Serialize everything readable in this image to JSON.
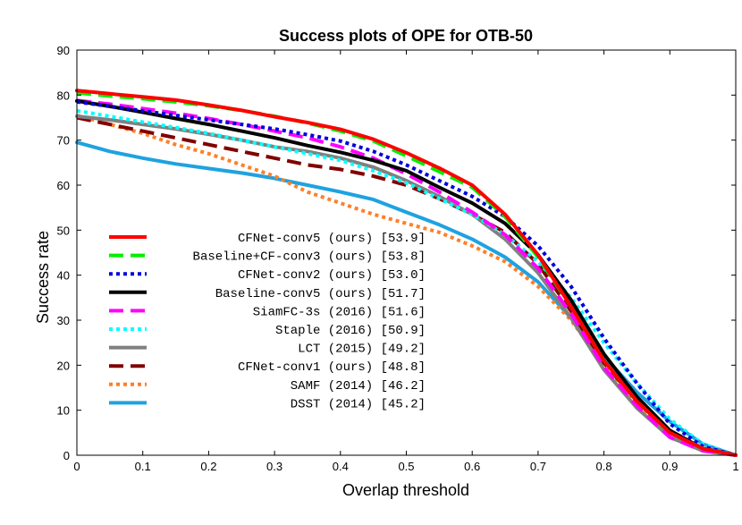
{
  "chart_data": {
    "type": "line",
    "title": "Success plots of OPE for OTB-50",
    "xlabel": "Overlap threshold",
    "ylabel": "Success rate",
    "xlim": [
      0,
      1
    ],
    "ylim": [
      0,
      90
    ],
    "xticks": [
      "0",
      "0.1",
      "0.2",
      "0.3",
      "0.4",
      "0.5",
      "0.6",
      "0.7",
      "0.8",
      "0.9",
      "1"
    ],
    "yticks": [
      "0",
      "10",
      "20",
      "30",
      "40",
      "50",
      "60",
      "70",
      "80",
      "90"
    ],
    "grid": false,
    "legend_position": "lower-left",
    "x": [
      0,
      0.05,
      0.1,
      0.15,
      0.2,
      0.25,
      0.3,
      0.35,
      0.4,
      0.45,
      0.5,
      0.55,
      0.6,
      0.65,
      0.7,
      0.75,
      0.8,
      0.85,
      0.9,
      0.95,
      1.0
    ],
    "series": [
      {
        "name": "CFNet-conv5 (ours) [53.9]",
        "color": "#ff0000",
        "dash": "solid",
        "values": [
          81,
          80.3,
          79.6,
          78.9,
          77.8,
          76.6,
          75.2,
          73.9,
          72.4,
          70.2,
          67.2,
          63.8,
          60,
          53.5,
          44.5,
          33,
          21,
          12,
          5,
          1.5,
          0
        ]
      },
      {
        "name": "Baseline+CF-conv3 (ours) [53.8]",
        "color": "#00ee00",
        "dash": "dashed",
        "values": [
          80.5,
          79.8,
          79.2,
          78.5,
          77.6,
          76.6,
          75.3,
          73.8,
          72,
          69.8,
          66.5,
          63,
          59.5,
          53,
          44,
          33,
          21,
          12,
          5,
          1.5,
          0
        ]
      },
      {
        "name": "CFNet-conv2 (ours) [53.0]",
        "color": "#0000dd",
        "dash": "dotted",
        "values": [
          78.5,
          77.5,
          76.5,
          75.5,
          74.5,
          73.5,
          72.5,
          71.2,
          69.8,
          67.5,
          64.5,
          61,
          57.5,
          53,
          46.5,
          37.5,
          26,
          16,
          7,
          2,
          0
        ]
      },
      {
        "name": "Baseline-conv5 (ours) [51.7]",
        "color": "#000000",
        "dash": "solid",
        "values": [
          78.7,
          77.5,
          76.2,
          74.8,
          73.5,
          72,
          70.5,
          68.8,
          67.3,
          65.5,
          63.2,
          59.5,
          56,
          51.5,
          44.5,
          34.5,
          22.5,
          13,
          5.5,
          1.5,
          0
        ]
      },
      {
        "name": "SiamFC-3s (2016) [51.6]",
        "color": "#ff00ff",
        "dash": "dashed",
        "values": [
          78.8,
          78,
          77,
          76,
          74.8,
          73.5,
          72,
          70.5,
          68.5,
          66,
          62.5,
          58.5,
          54,
          49,
          41.5,
          31.5,
          19.5,
          11,
          4,
          1,
          0
        ]
      },
      {
        "name": "Staple (2016) [50.9]",
        "color": "#00ffff",
        "dash": "dotted",
        "values": [
          76.5,
          75.3,
          74,
          72.8,
          71.5,
          70,
          68.5,
          67,
          65.5,
          63.2,
          60.5,
          57,
          53.5,
          49,
          43,
          35,
          25,
          16,
          8,
          2.5,
          0
        ]
      },
      {
        "name": "LCT (2015) [49.2]",
        "color": "#808080",
        "dash": "solid",
        "values": [
          75.3,
          74.5,
          73.5,
          72.5,
          71.3,
          70,
          68.5,
          67.5,
          66,
          64,
          61,
          57.5,
          53.5,
          48,
          40.5,
          30.5,
          19,
          10.5,
          4,
          1,
          0
        ]
      },
      {
        "name": "CFNet-conv1 (ours) [48.8]",
        "color": "#800000",
        "dash": "dashed",
        "values": [
          75,
          73.5,
          72,
          70.5,
          69,
          67.5,
          66,
          64.5,
          63.5,
          62,
          60,
          57,
          53.5,
          49.5,
          42.5,
          32,
          20.5,
          12,
          5,
          1.5,
          0
        ]
      },
      {
        "name": "SAMF (2014) [46.2]",
        "color": "#ff7f27",
        "dash": "dotted",
        "values": [
          75.5,
          73.5,
          71.5,
          69,
          67,
          64.5,
          62,
          58.5,
          56,
          53.5,
          51.5,
          49.5,
          46.5,
          43,
          37.5,
          30,
          20,
          11.5,
          5,
          1.5,
          0
        ]
      },
      {
        "name": "DSST (2014) [45.2]",
        "color": "#1fa2e0",
        "dash": "solid",
        "values": [
          69.5,
          67.5,
          66,
          64.7,
          63.7,
          62.7,
          61.5,
          60,
          58.5,
          56.8,
          54,
          51.2,
          48,
          44,
          38.5,
          30.5,
          22,
          14,
          7.5,
          2.5,
          0
        ]
      }
    ]
  }
}
